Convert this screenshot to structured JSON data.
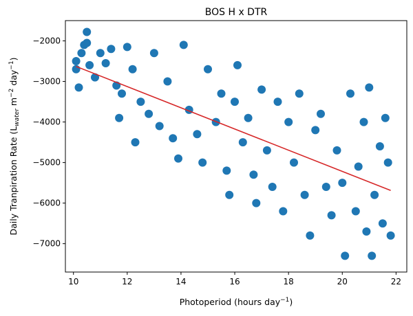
{
  "chart_data": {
    "type": "scatter",
    "title": "BOS H x DTR",
    "xlabel": {
      "text": "Photoperiod (hours day",
      "sup": "−1",
      "end": ")"
    },
    "ylabel": {
      "pre": "Daily Tranpiration Rate (L",
      "sub": "water",
      "mid": " m",
      "sup1": "−2",
      "mid2": " day",
      "sup2": "−1",
      "end": ")"
    },
    "xlim": [
      9.7,
      22.4
    ],
    "ylim": [
      -7700,
      -1500
    ],
    "xticks": [
      10,
      12,
      14,
      16,
      18,
      20,
      22
    ],
    "yticks": [
      -7000,
      -6000,
      -5000,
      -4000,
      -3000,
      -2000
    ],
    "xtick_labels": [
      "10",
      "12",
      "14",
      "16",
      "18",
      "20",
      "22"
    ],
    "ytick_labels": [
      "−7000",
      "−6000",
      "−5000",
      "−4000",
      "−3000",
      "−2000"
    ],
    "grid": false,
    "colors": {
      "points": "#1f77b4",
      "trend": "#d62728"
    },
    "series": [
      {
        "kind": "scatter",
        "points": [
          [
            10.1,
            -2500
          ],
          [
            10.1,
            -2700
          ],
          [
            10.2,
            -3150
          ],
          [
            10.3,
            -2300
          ],
          [
            10.4,
            -2100
          ],
          [
            10.5,
            -1780
          ],
          [
            10.5,
            -2050
          ],
          [
            10.6,
            -2600
          ],
          [
            10.8,
            -2900
          ],
          [
            11.0,
            -2300
          ],
          [
            11.2,
            -2550
          ],
          [
            11.4,
            -2200
          ],
          [
            11.6,
            -3100
          ],
          [
            11.8,
            -3300
          ],
          [
            11.7,
            -3900
          ],
          [
            12.0,
            -2150
          ],
          [
            12.2,
            -2700
          ],
          [
            12.3,
            -4500
          ],
          [
            12.5,
            -3500
          ],
          [
            12.8,
            -3800
          ],
          [
            13.0,
            -2300
          ],
          [
            13.2,
            -4100
          ],
          [
            13.5,
            -3000
          ],
          [
            13.7,
            -4400
          ],
          [
            13.9,
            -4900
          ],
          [
            14.1,
            -2100
          ],
          [
            14.3,
            -3700
          ],
          [
            14.6,
            -4300
          ],
          [
            14.8,
            -5000
          ],
          [
            15.0,
            -2700
          ],
          [
            15.3,
            -4000
          ],
          [
            15.5,
            -3300
          ],
          [
            15.7,
            -5200
          ],
          [
            15.8,
            -5800
          ],
          [
            16.0,
            -3500
          ],
          [
            16.1,
            -2600
          ],
          [
            16.3,
            -4500
          ],
          [
            16.5,
            -3900
          ],
          [
            16.7,
            -5300
          ],
          [
            16.8,
            -6000
          ],
          [
            17.0,
            -3200
          ],
          [
            17.2,
            -4700
          ],
          [
            17.4,
            -5600
          ],
          [
            17.6,
            -3500
          ],
          [
            17.8,
            -6200
          ],
          [
            18.0,
            -4000
          ],
          [
            18.2,
            -5000
          ],
          [
            18.4,
            -3300
          ],
          [
            18.6,
            -5800
          ],
          [
            18.8,
            -6800
          ],
          [
            19.0,
            -4200
          ],
          [
            19.2,
            -3800
          ],
          [
            19.4,
            -5600
          ],
          [
            19.6,
            -6300
          ],
          [
            19.8,
            -4700
          ],
          [
            20.0,
            -5500
          ],
          [
            20.1,
            -7300
          ],
          [
            20.3,
            -3300
          ],
          [
            20.5,
            -6200
          ],
          [
            20.6,
            -5100
          ],
          [
            20.8,
            -4000
          ],
          [
            20.9,
            -6700
          ],
          [
            21.0,
            -3150
          ],
          [
            21.1,
            -7300
          ],
          [
            21.2,
            -5800
          ],
          [
            21.4,
            -4600
          ],
          [
            21.5,
            -6500
          ],
          [
            21.6,
            -3900
          ],
          [
            21.7,
            -5000
          ],
          [
            21.8,
            -6800
          ]
        ]
      },
      {
        "kind": "line",
        "points": [
          [
            10.1,
            -2630
          ],
          [
            21.8,
            -5690
          ]
        ]
      }
    ]
  }
}
